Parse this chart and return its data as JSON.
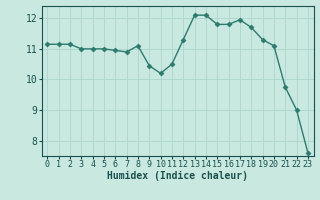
{
  "xlabel": "Humidex (Indice chaleur)",
  "x": [
    0,
    1,
    2,
    3,
    4,
    5,
    6,
    7,
    8,
    9,
    10,
    11,
    12,
    13,
    14,
    15,
    16,
    17,
    18,
    19,
    20,
    21,
    22,
    23
  ],
  "y": [
    11.15,
    11.15,
    11.15,
    11.0,
    11.0,
    11.0,
    10.95,
    10.9,
    11.1,
    10.45,
    10.2,
    10.5,
    11.3,
    12.1,
    12.1,
    11.8,
    11.8,
    11.95,
    11.7,
    11.3,
    11.1,
    9.75,
    9.0,
    7.6
  ],
  "ylim": [
    7.5,
    12.4
  ],
  "yticks": [
    8,
    9,
    10,
    11,
    12
  ],
  "line_color": "#2d7b6e",
  "marker": "D",
  "marker_size": 2.5,
  "bg_color": "#c8e8e0",
  "grid_color": "#b0d8d0",
  "axis_label_color": "#1a5050",
  "tick_label_color": "#1a5050",
  "linewidth": 1.0,
  "xlabel_fontsize": 7,
  "tick_fontsize": 6
}
